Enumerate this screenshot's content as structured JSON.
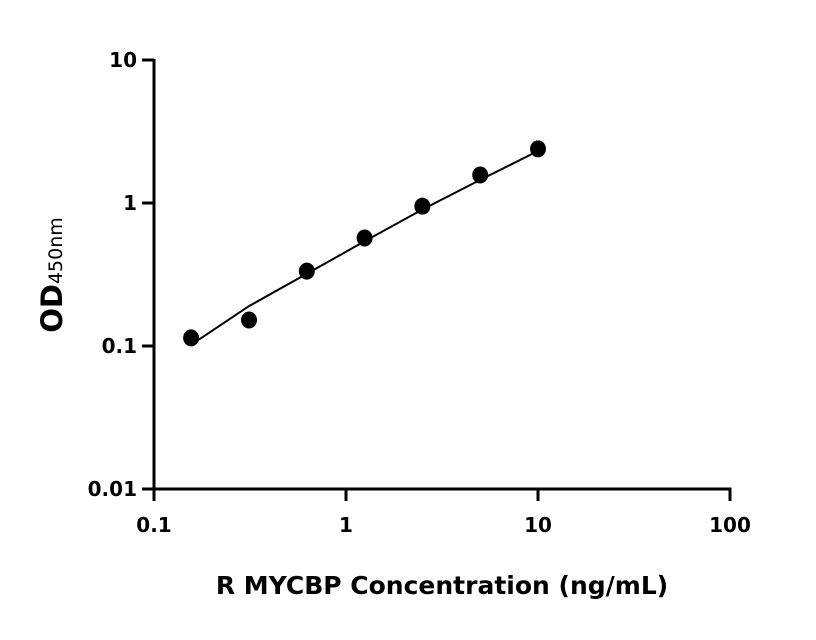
{
  "chart_data": {
    "type": "scatter",
    "xlabel": "R MYCBP Concentration (ng/mL)",
    "ylabel_main": "OD",
    "ylabel_sub": "450nm",
    "xscale": "log",
    "yscale": "log",
    "xlim": [
      0.1,
      100
    ],
    "ylim": [
      0.01,
      10
    ],
    "xticks": [
      "0.1",
      "1",
      "10",
      "100"
    ],
    "yticks": [
      "0.01",
      "0.1",
      "1",
      "10"
    ],
    "grid": false,
    "series": [
      {
        "x": [
          0.156,
          0.3125,
          0.625,
          1.25,
          2.5,
          5,
          10
        ],
        "y": [
          0.114,
          0.152,
          0.334,
          0.569,
          0.95,
          1.57,
          2.39
        ],
        "marker": "circle",
        "color": "#000000"
      }
    ],
    "fit_curve": {
      "x": [
        0.156,
        0.3125,
        0.625,
        1.25,
        2.5,
        5,
        10
      ],
      "y": [
        0.102,
        0.19,
        0.32,
        0.54,
        0.9,
        1.45,
        2.31
      ],
      "color": "#000000"
    }
  }
}
